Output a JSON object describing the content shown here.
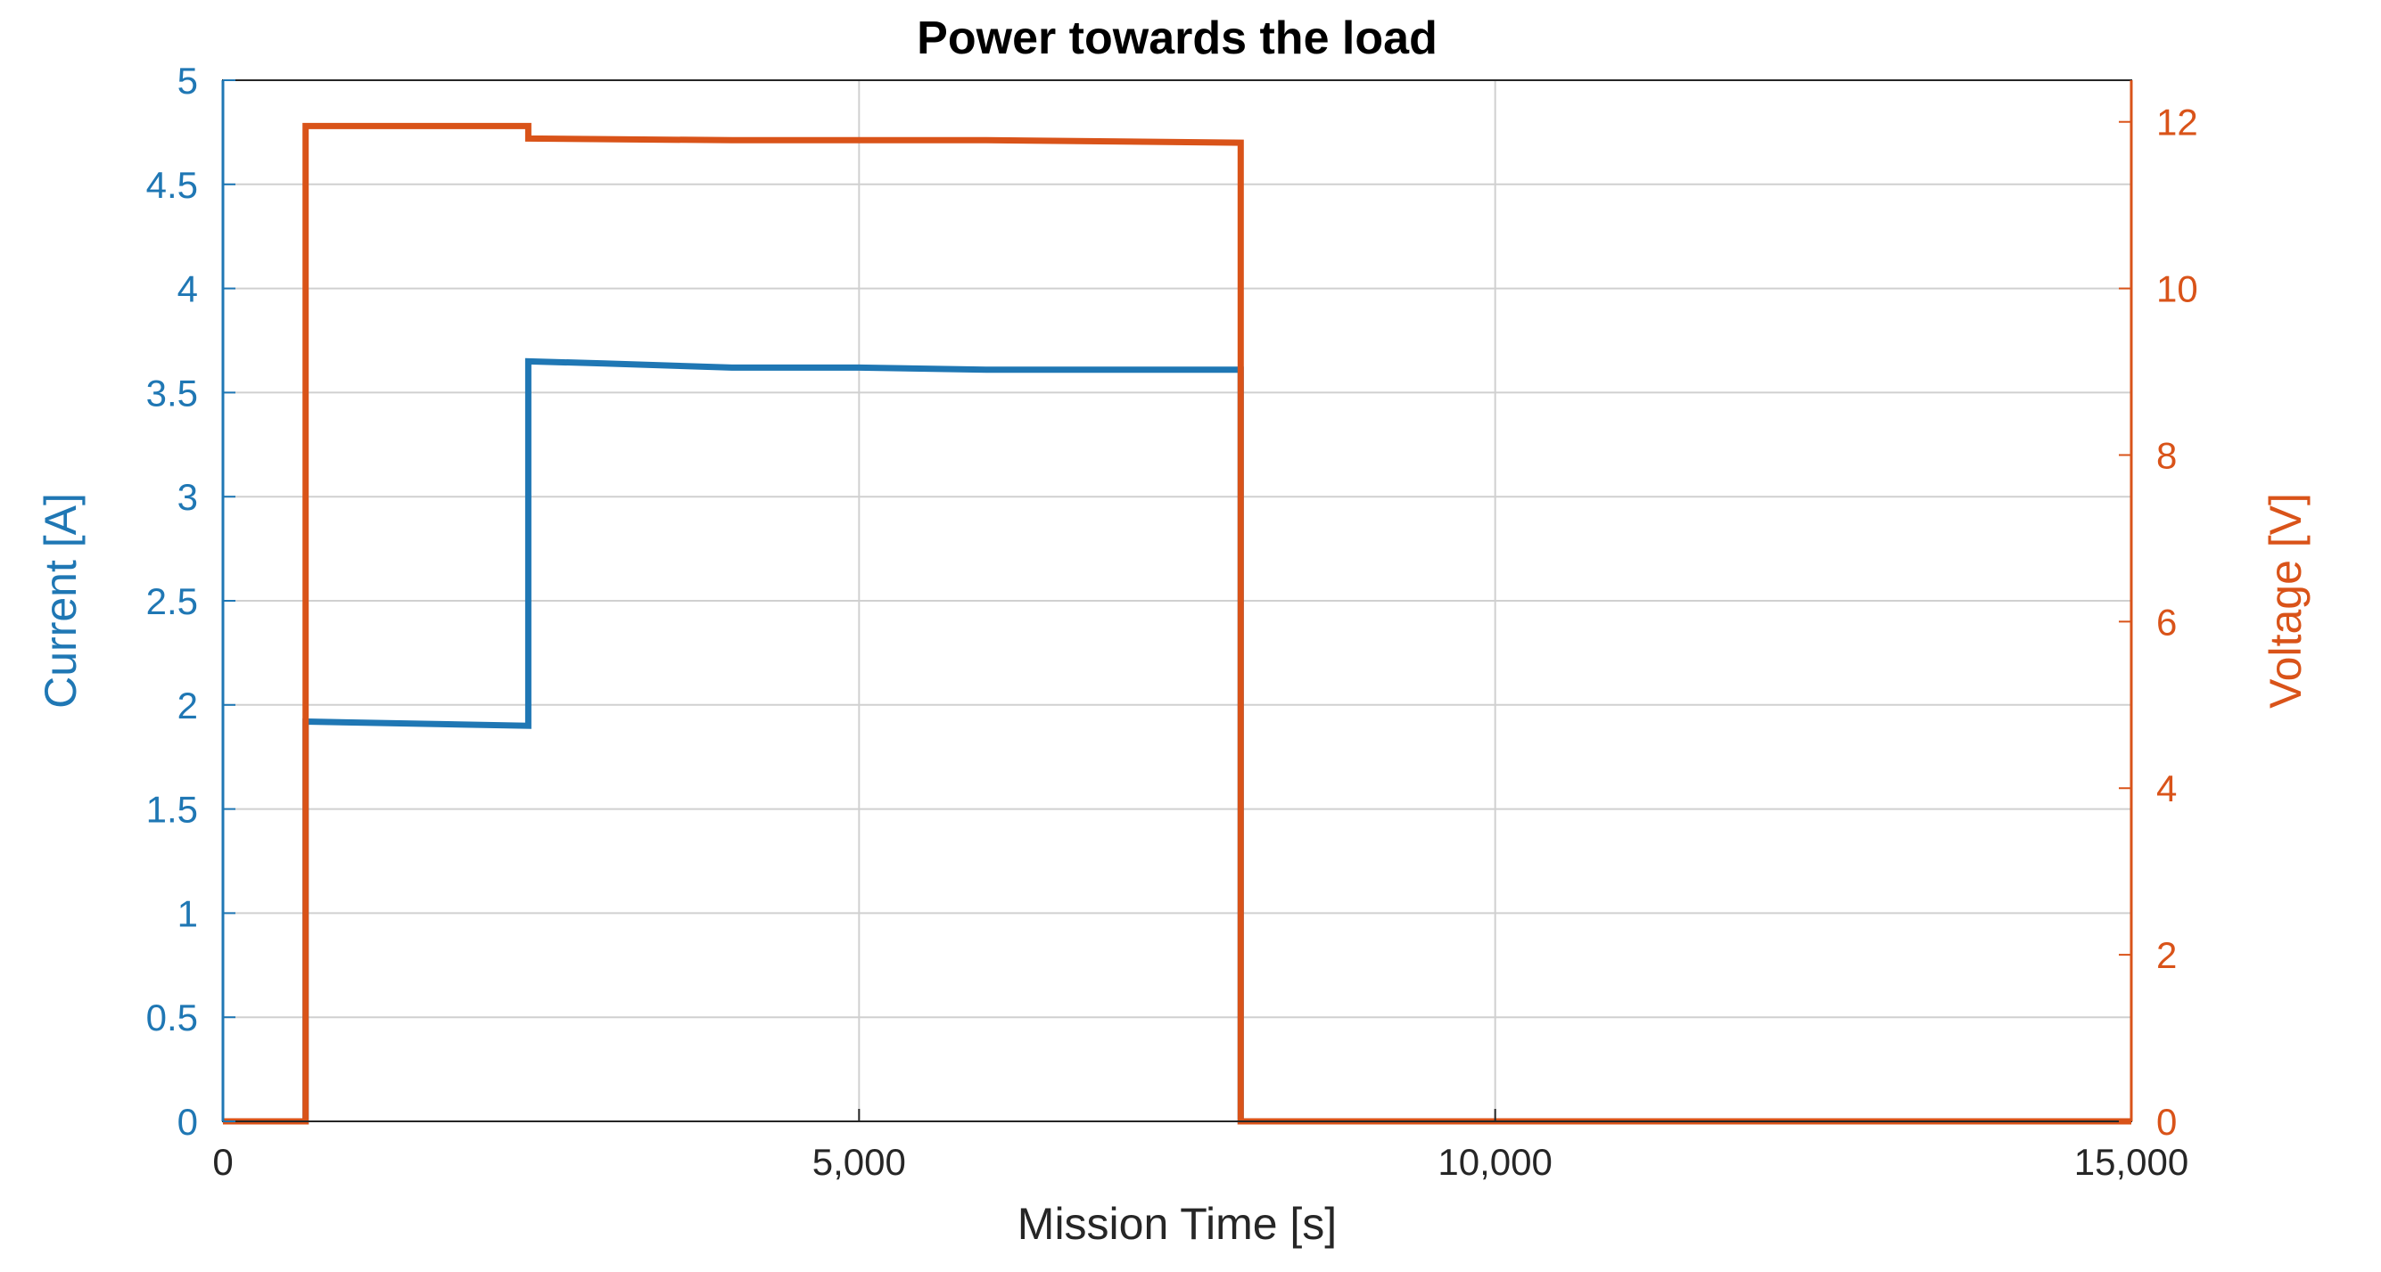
{
  "chart_data": {
    "type": "line",
    "title": "Power towards the load",
    "xlabel": "Mission Time [s]",
    "ylabel_left": "Current [A]",
    "ylabel_right": "Voltage [V]",
    "xlim": [
      0,
      15000
    ],
    "ylim_left": [
      0,
      5
    ],
    "ylim_right": [
      0,
      12.5
    ],
    "grid": true,
    "x_ticks": [
      0,
      5000,
      10000,
      15000
    ],
    "x_tick_labels": [
      "0",
      "5,000",
      "10,000",
      "15,000"
    ],
    "y_left_ticks": [
      0,
      0.5,
      1,
      1.5,
      2,
      2.5,
      3,
      3.5,
      4,
      4.5,
      5
    ],
    "y_left_tick_labels": [
      "0",
      "0.5",
      "1",
      "1.5",
      "2",
      "2.5",
      "3",
      "3.5",
      "4",
      "4.5",
      "5"
    ],
    "y_right_ticks": [
      0,
      2,
      4,
      6,
      8,
      10,
      12
    ],
    "y_right_tick_labels": [
      "0",
      "2",
      "4",
      "6",
      "8",
      "10",
      "12"
    ],
    "colors": {
      "current": "#1f77b4",
      "voltage": "#d95319"
    },
    "series": [
      {
        "name": "Current",
        "axis": "left",
        "color": "#1f77b4",
        "x": [
          0,
          650,
          650,
          2400,
          2400,
          3000,
          4000,
          5000,
          6000,
          7000,
          8000,
          8000,
          15000
        ],
        "y": [
          0,
          0,
          1.92,
          1.9,
          3.65,
          3.64,
          3.62,
          3.62,
          3.61,
          3.61,
          3.61,
          0,
          0
        ]
      },
      {
        "name": "Voltage",
        "axis": "right",
        "color": "#d95319",
        "x": [
          0,
          650,
          650,
          2400,
          2400,
          4000,
          6000,
          8000,
          8000,
          15000
        ],
        "y": [
          0,
          0,
          11.95,
          11.95,
          11.8,
          11.78,
          11.78,
          11.75,
          0,
          0
        ]
      }
    ]
  }
}
